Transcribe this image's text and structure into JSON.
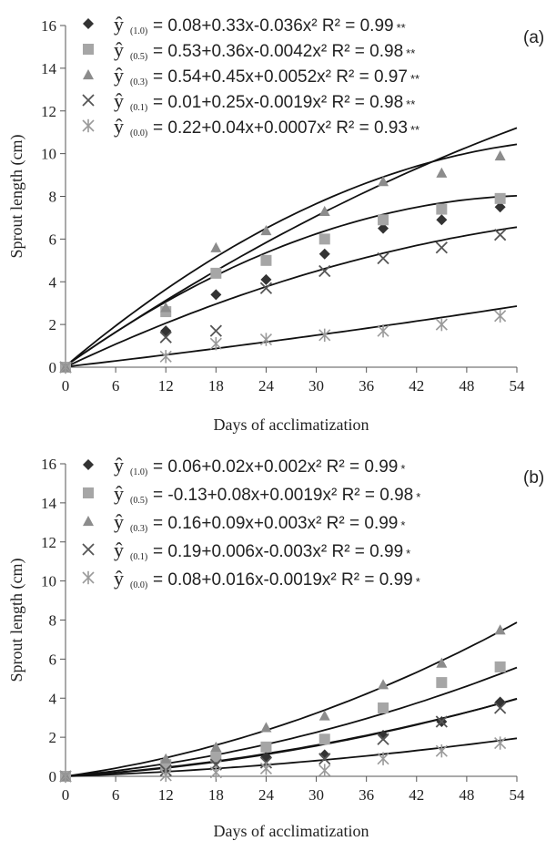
{
  "chart_data": [
    {
      "type": "scatter",
      "panel_label": "(a)",
      "xlabel": "Days of acclimatization",
      "ylabel": "Sprout length (cm)",
      "xlim": [
        0,
        54
      ],
      "ylim": [
        0,
        16
      ],
      "xticks": [
        0,
        6,
        12,
        18,
        24,
        30,
        36,
        42,
        48,
        54
      ],
      "yticks": [
        0,
        2,
        4,
        6,
        8,
        10,
        12,
        14,
        16
      ],
      "x": [
        0,
        12,
        18,
        24,
        31,
        38,
        45,
        52
      ],
      "series": [
        {
          "sub": "(1.0)",
          "equation": "= 0.08+0.33x-0.036x² R² = 0.99",
          "sig": "**",
          "marker": "diamond",
          "color": "#333333",
          "values": [
            0,
            1.7,
            3.4,
            4.1,
            5.3,
            6.5,
            6.9,
            7.5
          ],
          "curve": [
            0.08,
            0.267,
            -0.00113
          ]
        },
        {
          "sub": "(0.5)",
          "equation": "= 0.53+0.36x-0.0042x² R² = 0.98",
          "sig": "**",
          "marker": "square",
          "color": "#a6a6a6",
          "values": [
            0,
            2.6,
            4.4,
            5.0,
            6.0,
            6.9,
            7.4,
            7.9
          ],
          "curve": [
            0.05,
            0.28,
            -0.00245
          ]
        },
        {
          "sub": "(0.3)",
          "equation": "= 0.54+0.45x+0.0052x² R² = 0.97",
          "sig": "**",
          "marker": "triangle",
          "color": "#8c8c8c",
          "values": [
            0,
            2.8,
            5.6,
            6.4,
            7.3,
            8.7,
            9.1,
            9.9
          ],
          "curve": [
            0.05,
            0.33,
            -0.00255
          ]
        },
        {
          "sub": "(0.1)",
          "equation": "= 0.01+0.25x-0.0019x² R² = 0.98",
          "sig": "**",
          "marker": "x",
          "color": "#555555",
          "values": [
            0,
            1.4,
            1.7,
            3.7,
            4.5,
            5.1,
            5.6,
            6.2
          ],
          "curve": [
            0.01,
            0.185,
            -0.00118
          ]
        },
        {
          "sub": "(0.0)",
          "equation": "= 0.22+0.04x+0.0007x² R² = 0.93",
          "sig": "**",
          "marker": "asterisk",
          "color": "#9a9a9a",
          "values": [
            0,
            0.5,
            1.1,
            1.3,
            1.5,
            1.7,
            2.0,
            2.4
          ],
          "curve": [
            0.02,
            0.045,
            0.00014
          ]
        }
      ]
    },
    {
      "type": "scatter",
      "panel_label": "(b)",
      "xlabel": "Days of acclimatization",
      "ylabel": "Sprout length (cm)",
      "xlim": [
        0,
        54
      ],
      "ylim": [
        0,
        16
      ],
      "xticks": [
        0,
        6,
        12,
        18,
        24,
        30,
        36,
        42,
        48,
        54
      ],
      "yticks": [
        0,
        2,
        4,
        6,
        8,
        10,
        12,
        14,
        16
      ],
      "x": [
        0,
        12,
        18,
        24,
        31,
        38,
        45,
        52
      ],
      "series": [
        {
          "sub": "(1.0)",
          "equation": "= 0.06+0.02x+0.002x² R² = 0.99",
          "sig": "*",
          "marker": "diamond",
          "color": "#333333",
          "values": [
            0,
            0.4,
            0.8,
            1.0,
            1.1,
            2.1,
            2.8,
            3.8
          ],
          "curve": [
            0,
            0.028,
            0.00084
          ]
        },
        {
          "sub": "(0.5)",
          "equation": "= -0.13+0.08x+0.0019x² R² = 0.98",
          "sig": "*",
          "marker": "square",
          "color": "#a6a6a6",
          "values": [
            0,
            0.6,
            1.0,
            1.5,
            1.9,
            3.5,
            4.8,
            5.6
          ],
          "curve": [
            0,
            0.04,
            0.00117
          ]
        },
        {
          "sub": "(0.3)",
          "equation": "= 0.16+0.09x+0.003x² R² = 0.99",
          "sig": "*",
          "marker": "triangle",
          "color": "#8c8c8c",
          "values": [
            0,
            0.9,
            1.5,
            2.5,
            3.1,
            4.7,
            5.8,
            7.5
          ],
          "curve": [
            0,
            0.06,
            0.00159
          ]
        },
        {
          "sub": "(0.1)",
          "equation": "= 0.19+0.006x-0.003x² R² = 0.99",
          "sig": "*",
          "marker": "x",
          "color": "#555555",
          "values": [
            0,
            0.3,
            0.6,
            0.7,
            0.9,
            1.9,
            2.8,
            3.5
          ],
          "curve": [
            0,
            0.025,
            0.0009
          ]
        },
        {
          "sub": "(0.0)",
          "equation": "= 0.08+0.016x-0.0019x² R² = 0.99",
          "sig": "*",
          "marker": "asterisk",
          "color": "#9a9a9a",
          "values": [
            0,
            0.05,
            0.2,
            0.4,
            0.3,
            0.9,
            1.3,
            1.7
          ],
          "curve": [
            0,
            0.015,
            0.00039
          ]
        }
      ]
    }
  ]
}
